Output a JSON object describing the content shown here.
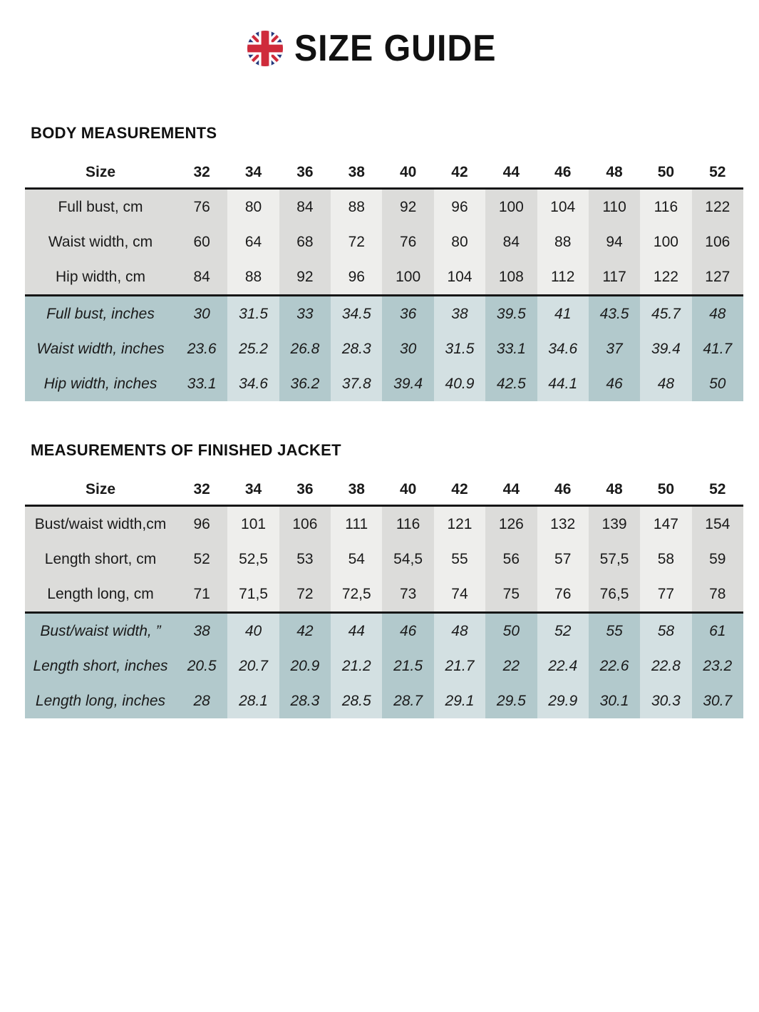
{
  "header": {
    "title": "SIZE GUIDE",
    "icon": "uk-flag-icon"
  },
  "colors": {
    "band_gray_dark": "#dcdcda",
    "band_gray_light": "#eeeeec",
    "band_teal_dark": "#b2c9cc",
    "band_teal_light": "#d3e0e2",
    "rule_black": "#161616",
    "flag_blue": "#27397c",
    "flag_red": "#cf2b3b",
    "text": "#1a1a1a"
  },
  "tables": [
    {
      "title": "BODY MEASUREMENTS",
      "header_label": "Size",
      "sizes": [
        "32",
        "34",
        "36",
        "38",
        "40",
        "42",
        "44",
        "46",
        "48",
        "50",
        "52"
      ],
      "cm_rows": [
        {
          "label": "Full bust, cm",
          "values": [
            "76",
            "80",
            "84",
            "88",
            "92",
            "96",
            "100",
            "104",
            "110",
            "116",
            "122"
          ]
        },
        {
          "label": "Waist width, cm",
          "values": [
            "60",
            "64",
            "68",
            "72",
            "76",
            "80",
            "84",
            "88",
            "94",
            "100",
            "106"
          ]
        },
        {
          "label": "Hip width, cm",
          "values": [
            "84",
            "88",
            "92",
            "96",
            "100",
            "104",
            "108",
            "112",
            "117",
            "122",
            "127"
          ]
        }
      ],
      "inch_rows": [
        {
          "label": "Full bust, inches",
          "values": [
            "30",
            "31.5",
            "33",
            "34.5",
            "36",
            "38",
            "39.5",
            "41",
            "43.5",
            "45.7",
            "48"
          ]
        },
        {
          "label": "Waist width, inches",
          "values": [
            "23.6",
            "25.2",
            "26.8",
            "28.3",
            "30",
            "31.5",
            "33.1",
            "34.6",
            "37",
            "39.4",
            "41.7"
          ]
        },
        {
          "label": "Hip width, inches",
          "values": [
            "33.1",
            "34.6",
            "36.2",
            "37.8",
            "39.4",
            "40.9",
            "42.5",
            "44.1",
            "46",
            "48",
            "50"
          ]
        }
      ]
    },
    {
      "title": "MEASUREMENTS OF FINISHED JACKET",
      "header_label": "Size",
      "sizes": [
        "32",
        "34",
        "36",
        "38",
        "40",
        "42",
        "44",
        "46",
        "48",
        "50",
        "52"
      ],
      "cm_rows": [
        {
          "label": "Bust/waist width,cm",
          "values": [
            "96",
            "101",
            "106",
            "111",
            "116",
            "121",
            "126",
            "132",
            "139",
            "147",
            "154"
          ]
        },
        {
          "label": "Length short, cm",
          "values": [
            "52",
            "52,5",
            "53",
            "54",
            "54,5",
            "55",
            "56",
            "57",
            "57,5",
            "58",
            "59"
          ]
        },
        {
          "label": "Length long, cm",
          "values": [
            "71",
            "71,5",
            "72",
            "72,5",
            "73",
            "74",
            "75",
            "76",
            "76,5",
            "77",
            "78"
          ]
        }
      ],
      "inch_rows": [
        {
          "label": "Bust/waist width, ”",
          "values": [
            "38",
            "40",
            "42",
            "44",
            "46",
            "48",
            "50",
            "52",
            "55",
            "58",
            "61"
          ]
        },
        {
          "label": "Length short, inches",
          "values": [
            "20.5",
            "20.7",
            "20.9",
            "21.2",
            "21.5",
            "21.7",
            "22",
            "22.4",
            "22.6",
            "22.8",
            "23.2"
          ]
        },
        {
          "label": "Length long, inches",
          "values": [
            "28",
            "28.1",
            "28.3",
            "28.5",
            "28.7",
            "29.1",
            "29.5",
            "29.9",
            "30.1",
            "30.3",
            "30.7"
          ]
        }
      ]
    }
  ]
}
